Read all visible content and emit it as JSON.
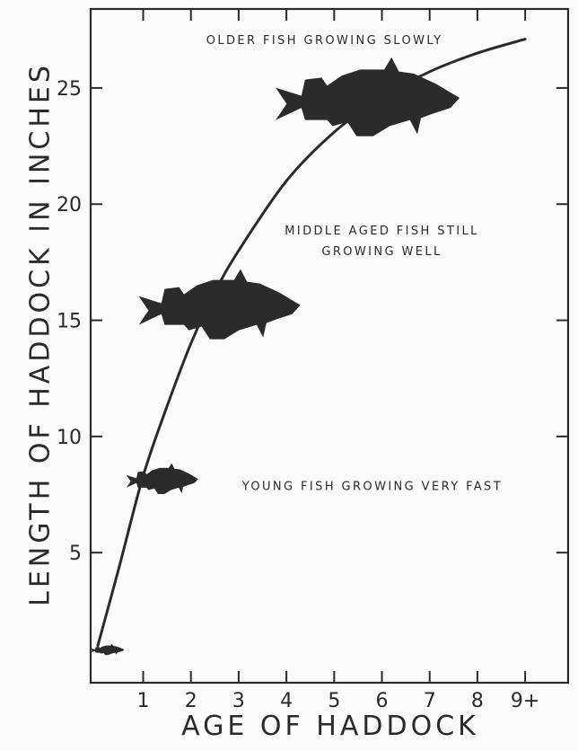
{
  "chart_data": {
    "type": "line",
    "xlabel": "AGE OF HADDOCK",
    "ylabel": "LENGTH OF HADDOCK IN INCHES",
    "x_ticks": [
      {
        "value": 1,
        "label": "1"
      },
      {
        "value": 2,
        "label": "2"
      },
      {
        "value": 3,
        "label": "3"
      },
      {
        "value": 4,
        "label": "4"
      },
      {
        "value": 5,
        "label": "5"
      },
      {
        "value": 6,
        "label": "6"
      },
      {
        "value": 7,
        "label": "7"
      },
      {
        "value": 8,
        "label": "8"
      },
      {
        "value": 9,
        "label": "9+"
      }
    ],
    "y_ticks": [
      {
        "value": 5,
        "label": "5"
      },
      {
        "value": 10,
        "label": "10"
      },
      {
        "value": 15,
        "label": "15"
      },
      {
        "value": 20,
        "label": "20"
      },
      {
        "value": 25,
        "label": "25"
      }
    ],
    "xlim": [
      -0.1,
      9.9
    ],
    "ylim": [
      -0.6,
      28.4
    ],
    "grid": false,
    "series": [
      {
        "values": [
          {
            "x": 0.05,
            "y": 1.0
          },
          {
            "x": 0.5,
            "y": 4.4
          },
          {
            "x": 1.0,
            "y": 8.3
          },
          {
            "x": 1.5,
            "y": 11.3
          },
          {
            "x": 2.0,
            "y": 14.0
          },
          {
            "x": 2.5,
            "y": 16.2
          },
          {
            "x": 3.0,
            "y": 18.0
          },
          {
            "x": 4.0,
            "y": 21.0
          },
          {
            "x": 5.0,
            "y": 23.1
          },
          {
            "x": 6.0,
            "y": 24.6
          },
          {
            "x": 7.0,
            "y": 25.7
          },
          {
            "x": 8.0,
            "y": 26.5
          },
          {
            "x": 9.0,
            "y": 27.1
          }
        ]
      }
    ],
    "annotations": [
      {
        "text": "OLDER FISH GROWING SLOWLY",
        "x": 4.8,
        "y": 26.9
      },
      {
        "text": "MIDDLE AGED FISH STILL",
        "x": 6.0,
        "y": 18.7
      },
      {
        "text": "GROWING WELL",
        "x": 6.0,
        "y": 17.8
      },
      {
        "text": "YOUNG FISH GROWING VERY FAST",
        "x": 5.8,
        "y": 7.7
      }
    ],
    "fish_markers": [
      {
        "size": "tiny",
        "x": 0.25,
        "y": 0.8
      },
      {
        "size": "small",
        "x": 1.4,
        "y": 8.1
      },
      {
        "size": "medium",
        "x": 2.6,
        "y": 15.5
      },
      {
        "size": "large",
        "x": 5.7,
        "y": 24.4
      }
    ],
    "colors": {
      "line": "#2b2b2b",
      "fish": "#2b2b2b",
      "background": "#fbfbfb"
    }
  }
}
